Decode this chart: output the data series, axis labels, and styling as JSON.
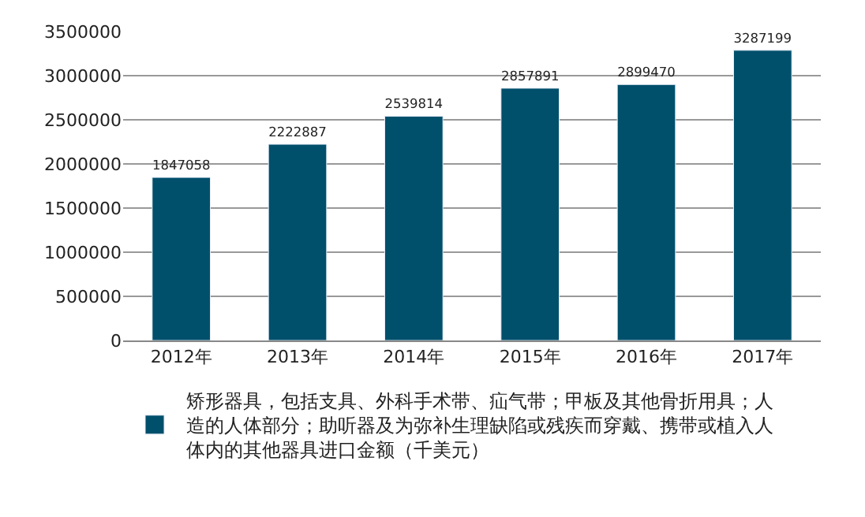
{
  "chart_data": {
    "type": "bar",
    "categories": [
      "2012年",
      "2013年",
      "2014年",
      "2015年",
      "2016年",
      "2017年"
    ],
    "series": [
      {
        "name": "矫形器具，包括支具、外科手术带、疝气带；甲板及其他骨折用具；人造的人体部分；助听器及为弥补生理缺陷或残疾而穿戴、携带或植入人体内的其他器具进口金额（千美元）",
        "color": "#004f6b",
        "values": [
          1847058,
          2222887,
          2539814,
          2857891,
          2899470,
          3287199
        ]
      }
    ],
    "ylim": [
      0,
      3500000
    ],
    "yticks": [
      0,
      500000,
      1000000,
      1500000,
      2000000,
      2500000,
      3000000,
      3500000
    ],
    "grid": "y",
    "legend": "bottom",
    "data_labels": true
  }
}
